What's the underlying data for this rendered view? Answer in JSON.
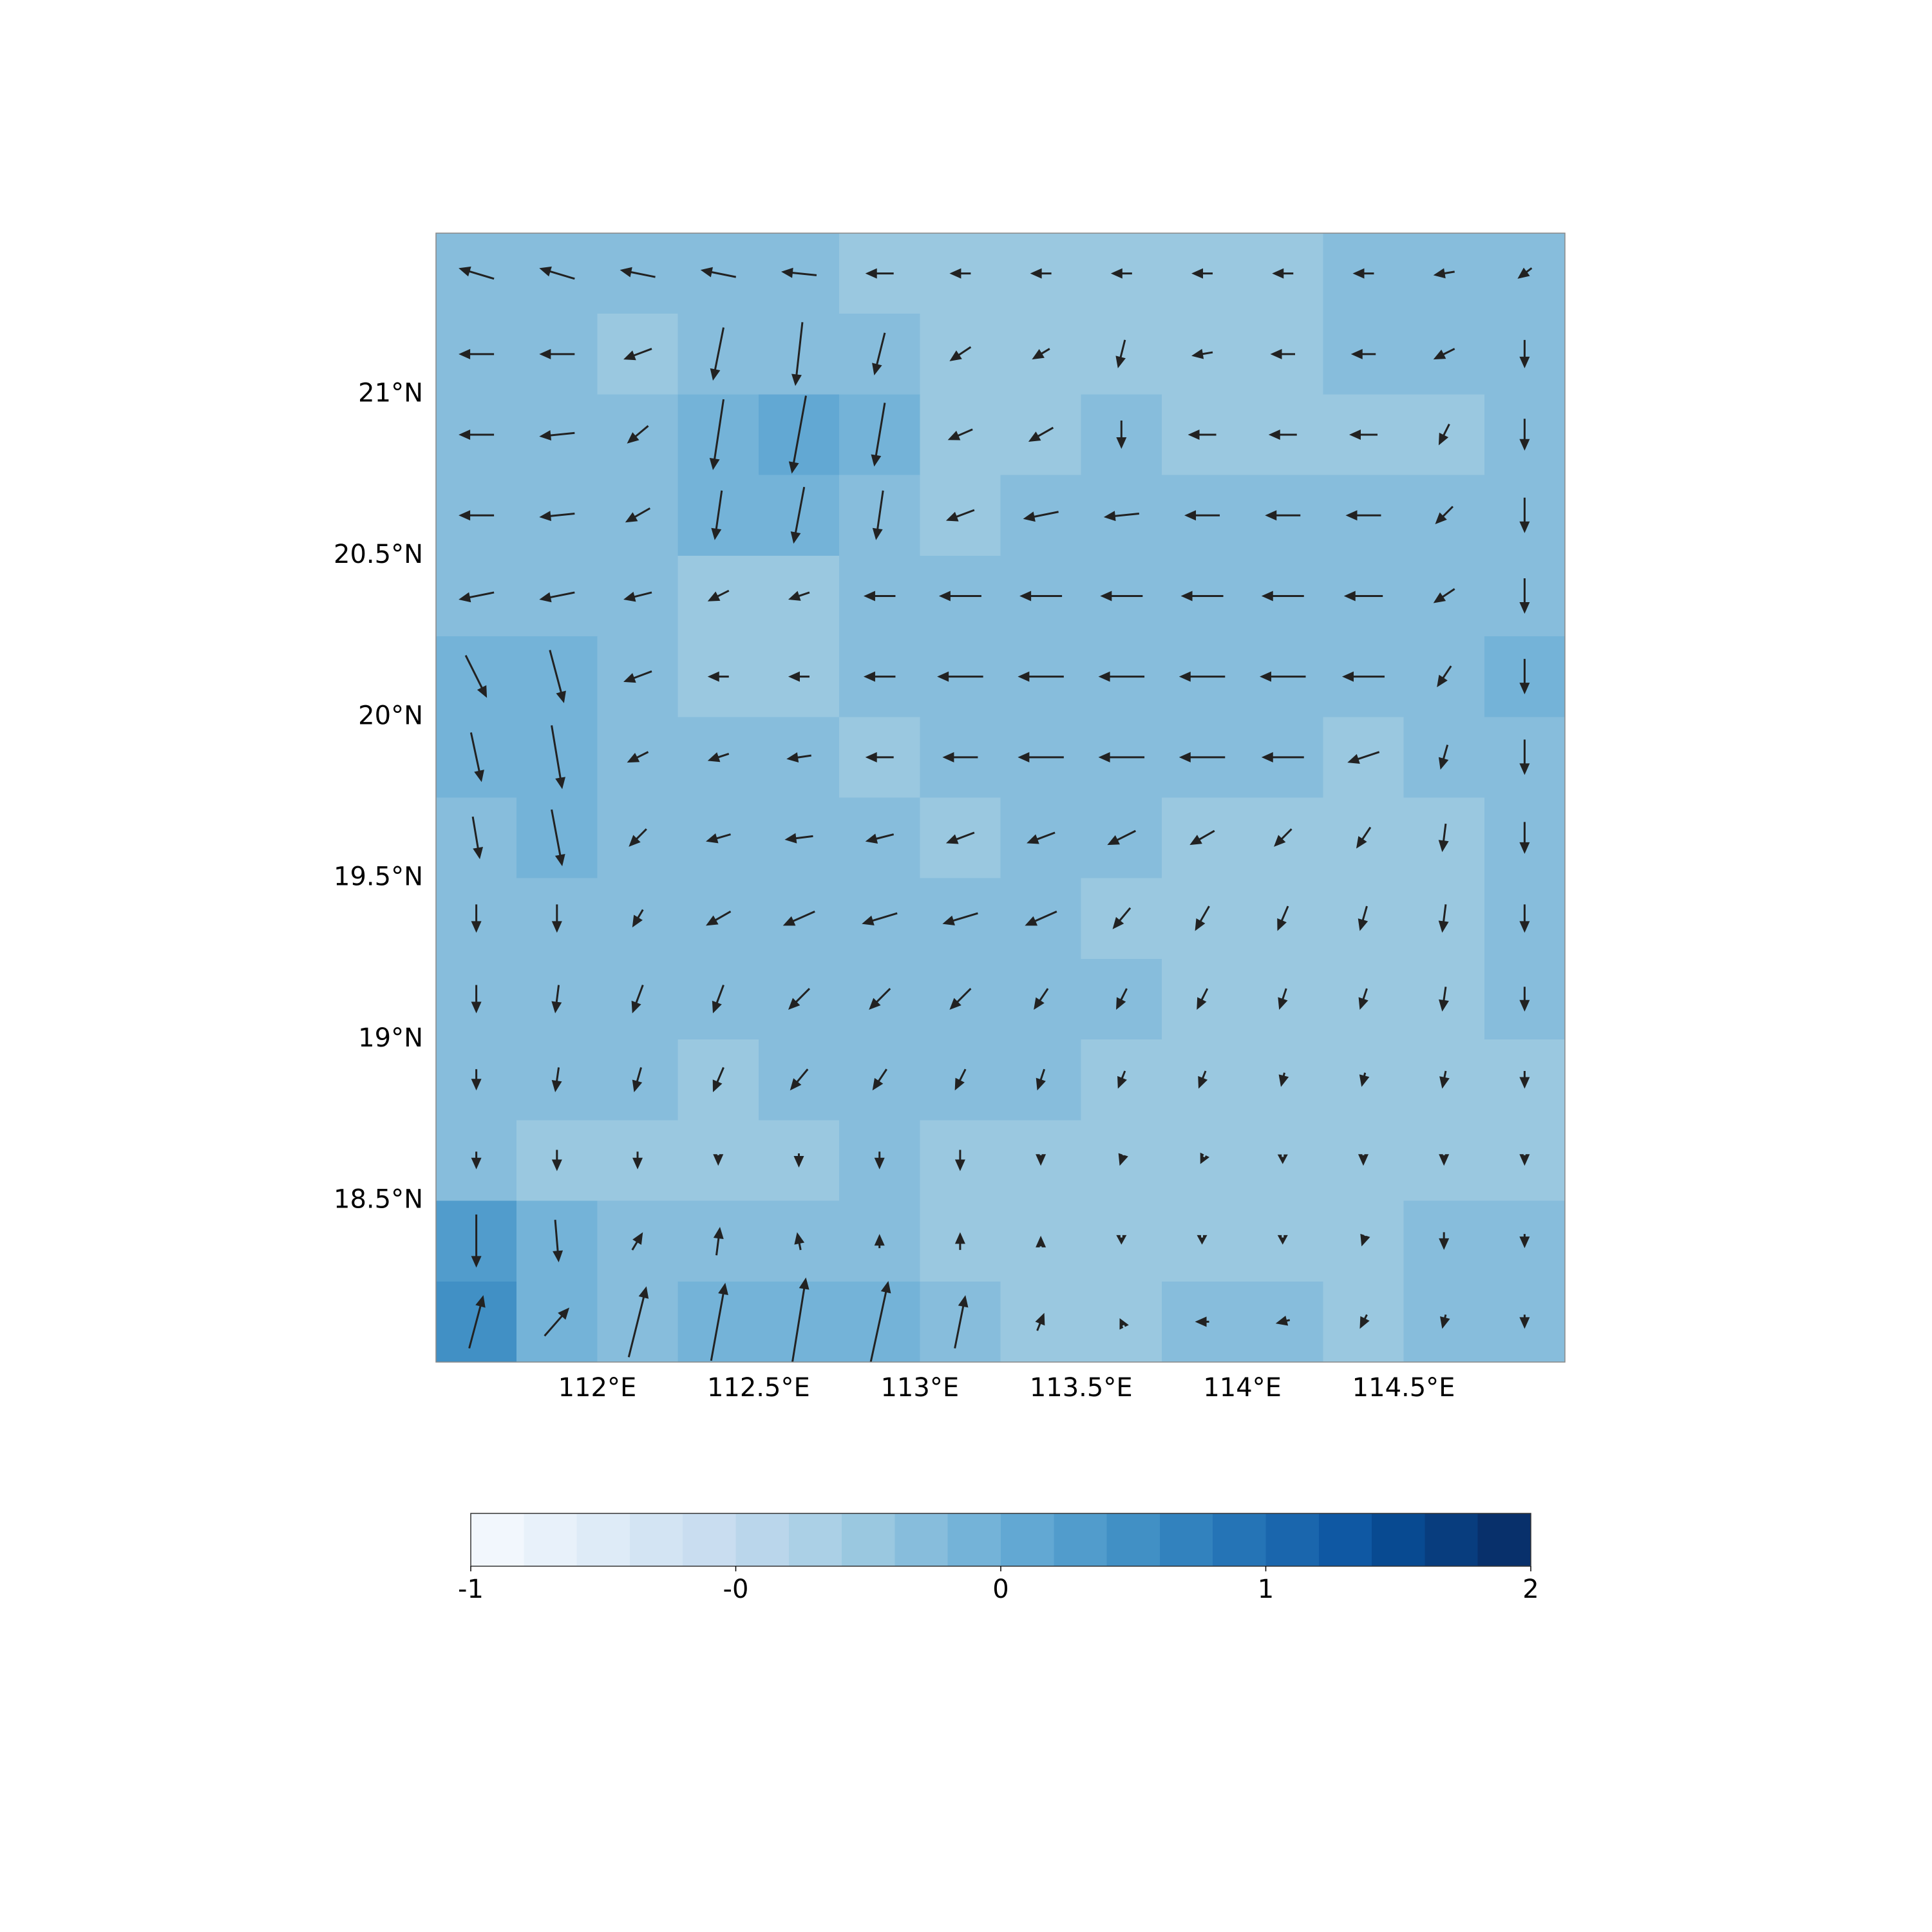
{
  "chart_data": {
    "type": "quiver",
    "xlim": [
      111.5,
      115.0
    ],
    "ylim": [
      18.0,
      21.5
    ],
    "xticks": [
      {
        "value": 112,
        "label": "112°E"
      },
      {
        "value": 112.5,
        "label": "112.5°E"
      },
      {
        "value": 113,
        "label": "113°E"
      },
      {
        "value": 113.5,
        "label": "113.5°E"
      },
      {
        "value": 114,
        "label": "114°E"
      },
      {
        "value": 114.5,
        "label": "114.5°E"
      }
    ],
    "yticks": [
      {
        "value": 18.5,
        "label": "18.5°N"
      },
      {
        "value": 19,
        "label": "19°N"
      },
      {
        "value": 19.5,
        "label": "19.5°N"
      },
      {
        "value": 20,
        "label": "20°N"
      },
      {
        "value": 20.5,
        "label": "20.5°N"
      },
      {
        "value": 21,
        "label": "21°N"
      }
    ],
    "x": [
      111.625,
      111.875,
      112.125,
      112.375,
      112.625,
      112.875,
      113.125,
      113.375,
      113.625,
      113.875,
      114.125,
      114.375,
      114.625,
      114.875
    ],
    "y": [
      21.375,
      21.125,
      20.875,
      20.625,
      20.375,
      20.125,
      19.875,
      19.625,
      19.375,
      19.125,
      18.875,
      18.625,
      18.375,
      18.125
    ],
    "values": [
      [
        0.3,
        0.3,
        0.3,
        0.3,
        0.3,
        0.15,
        0.15,
        0.15,
        0.15,
        0.15,
        0.15,
        0.3,
        0.3,
        0.3
      ],
      [
        0.3,
        0.3,
        0.15,
        0.3,
        0.3,
        0.3,
        0.15,
        0.15,
        0.15,
        0.15,
        0.15,
        0.3,
        0.3,
        0.3
      ],
      [
        0.3,
        0.3,
        0.3,
        0.45,
        0.5,
        0.45,
        0.15,
        0.15,
        0.3,
        0.15,
        0.15,
        0.15,
        0.15,
        0.3
      ],
      [
        0.3,
        0.3,
        0.3,
        0.45,
        0.45,
        0.3,
        0.15,
        0.3,
        0.3,
        0.3,
        0.3,
        0.3,
        0.3,
        0.3
      ],
      [
        0.3,
        0.3,
        0.3,
        0.15,
        0.15,
        0.3,
        0.3,
        0.3,
        0.3,
        0.3,
        0.3,
        0.3,
        0.3,
        0.3
      ],
      [
        0.45,
        0.45,
        0.3,
        0.15,
        0.15,
        0.3,
        0.3,
        0.3,
        0.3,
        0.3,
        0.3,
        0.3,
        0.3,
        0.45
      ],
      [
        0.45,
        0.45,
        0.3,
        0.3,
        0.3,
        0.15,
        0.3,
        0.3,
        0.3,
        0.3,
        0.3,
        0.15,
        0.3,
        0.3
      ],
      [
        0.3,
        0.45,
        0.3,
        0.3,
        0.3,
        0.3,
        0.15,
        0.3,
        0.3,
        0.15,
        0.15,
        0.15,
        0.15,
        0.3
      ],
      [
        0.3,
        0.3,
        0.3,
        0.3,
        0.3,
        0.3,
        0.3,
        0.3,
        0.15,
        0.15,
        0.15,
        0.15,
        0.15,
        0.3
      ],
      [
        0.3,
        0.3,
        0.3,
        0.3,
        0.3,
        0.3,
        0.3,
        0.3,
        0.3,
        0.15,
        0.15,
        0.15,
        0.15,
        0.3
      ],
      [
        0.3,
        0.3,
        0.3,
        0.15,
        0.3,
        0.3,
        0.3,
        0.3,
        0.15,
        0.15,
        0.15,
        0.15,
        0.15,
        0.15
      ],
      [
        0.3,
        0.15,
        0.15,
        0.15,
        0.15,
        0.3,
        0.15,
        0.15,
        0.15,
        0.15,
        0.15,
        0.15,
        0.15,
        0.15
      ],
      [
        0.65,
        0.45,
        0.3,
        0.3,
        0.3,
        0.3,
        0.15,
        0.15,
        0.15,
        0.15,
        0.15,
        0.15,
        0.3,
        0.3
      ],
      [
        0.85,
        0.45,
        0.3,
        0.45,
        0.45,
        0.45,
        0.3,
        0.15,
        0.15,
        0.3,
        0.3,
        0.15,
        0.3,
        0.3
      ]
    ],
    "u": [
      [
        -1,
        -1,
        -1,
        -1,
        -1,
        -0.8,
        -0.6,
        -0.6,
        -0.6,
        -0.6,
        -0.6,
        -0.6,
        -0.6,
        -0.4
      ],
      [
        -1,
        -1,
        -0.8,
        -0.3,
        -0.2,
        -0.3,
        -0.6,
        -0.5,
        -0.2,
        -0.6,
        -0.7,
        -0.7,
        -0.6,
        0
      ],
      [
        -1,
        -1,
        -0.6,
        -0.3,
        -0.4,
        -0.3,
        -0.7,
        -0.7,
        0,
        -0.8,
        -0.8,
        -0.8,
        -0.3,
        0
      ],
      [
        -1,
        -1,
        -0.7,
        -0.2,
        -0.3,
        -0.2,
        -0.8,
        -1,
        -1,
        -1,
        -1,
        -1,
        -0.5,
        0
      ],
      [
        -1,
        -1,
        -0.8,
        -0.6,
        -0.6,
        -0.9,
        -1.2,
        -1.2,
        -1.2,
        -1.2,
        -1.2,
        -1.1,
        -0.6,
        0
      ],
      [
        0.6,
        0.4,
        -0.8,
        -0.6,
        -0.6,
        -0.9,
        -1.3,
        -1.3,
        -1.3,
        -1.3,
        -1.3,
        -1.2,
        -0.4,
        0
      ],
      [
        0.3,
        0.3,
        -0.6,
        -0.6,
        -0.7,
        -0.8,
        -1,
        -1.3,
        -1.3,
        -1.3,
        -1.2,
        -0.9,
        -0.2,
        0
      ],
      [
        0.2,
        0.3,
        -0.5,
        -0.7,
        -0.8,
        -0.8,
        -0.8,
        -0.8,
        -0.8,
        -0.7,
        -0.5,
        -0.4,
        -0.1,
        0
      ],
      [
        0,
        0,
        -0.3,
        -0.7,
        -0.9,
        -1,
        -1,
        -0.9,
        -0.5,
        -0.4,
        -0.3,
        -0.2,
        -0.1,
        0
      ],
      [
        0,
        -0.1,
        -0.3,
        -0.3,
        -0.6,
        -0.6,
        -0.6,
        -0.4,
        -0.3,
        -0.3,
        -0.2,
        -0.2,
        -0.1,
        0
      ],
      [
        0,
        -0.1,
        -0.2,
        -0.3,
        -0.5,
        -0.4,
        -0.3,
        -0.2,
        -0.2,
        -0.2,
        -0.1,
        -0.1,
        -0.1,
        0
      ],
      [
        0,
        0,
        0,
        0,
        0,
        0,
        0,
        0,
        -0.1,
        -0.1,
        0,
        0,
        0,
        0
      ],
      [
        0,
        0.1,
        0.3,
        0.1,
        -0.1,
        0,
        0,
        0,
        0,
        0,
        0,
        -0.1,
        0,
        0
      ],
      [
        0.4,
        0.7,
        0.5,
        0.4,
        0.4,
        0.5,
        0.3,
        0.2,
        -0.1,
        -0.4,
        -0.4,
        -0.2,
        -0.1,
        0
      ]
    ],
    "v": [
      [
        0.3,
        0.3,
        0.2,
        0.2,
        0.1,
        0,
        0,
        0,
        0,
        0,
        0,
        0,
        -0.1,
        -0.3
      ],
      [
        0,
        0,
        -0.3,
        -1.5,
        -1.8,
        -1.2,
        -0.4,
        -0.3,
        -0.8,
        -0.1,
        0,
        0,
        -0.3,
        -0.8
      ],
      [
        0,
        -0.1,
        -0.5,
        -2,
        -2.2,
        -1.8,
        -0.3,
        -0.4,
        -0.8,
        0,
        0,
        0,
        -0.6,
        -0.9
      ],
      [
        0,
        -0.1,
        -0.4,
        -1.4,
        -1.6,
        -1.4,
        -0.3,
        -0.2,
        -0.1,
        0,
        0,
        0,
        -0.5,
        -1
      ],
      [
        -0.2,
        -0.2,
        -0.2,
        -0.3,
        -0.2,
        0,
        0,
        0,
        0,
        0,
        0,
        0,
        -0.4,
        -1
      ],
      [
        -1.2,
        -1.5,
        -0.3,
        0,
        0,
        0,
        0,
        0,
        0,
        0,
        0,
        0,
        -0.6,
        -1
      ],
      [
        -1.4,
        -1.8,
        -0.3,
        -0.2,
        -0.1,
        0,
        0,
        0,
        0,
        0,
        0,
        -0.3,
        -0.7,
        -1
      ],
      [
        -1.2,
        -1.6,
        -0.5,
        -0.2,
        -0.1,
        -0.2,
        -0.3,
        -0.3,
        -0.4,
        -0.4,
        -0.5,
        -0.6,
        -0.8,
        -0.9
      ],
      [
        -0.8,
        -0.8,
        -0.5,
        -0.4,
        -0.4,
        -0.3,
        -0.3,
        -0.4,
        -0.6,
        -0.7,
        -0.7,
        -0.7,
        -0.8,
        -0.8
      ],
      [
        -0.8,
        -0.8,
        -0.8,
        -0.8,
        -0.6,
        -0.6,
        -0.6,
        -0.6,
        -0.6,
        -0.6,
        -0.6,
        -0.6,
        -0.7,
        -0.7
      ],
      [
        -0.6,
        -0.7,
        -0.7,
        -0.7,
        -0.6,
        -0.6,
        -0.6,
        -0.6,
        -0.5,
        -0.5,
        -0.4,
        -0.4,
        -0.5,
        -0.5
      ],
      [
        -0.5,
        -0.6,
        -0.5,
        -0.3,
        -0.4,
        -0.5,
        -0.6,
        -0.3,
        -0.3,
        -0.2,
        -0.2,
        -0.3,
        -0.3,
        -0.3
      ],
      [
        -1.5,
        -1.2,
        0.5,
        0.8,
        0.5,
        0.4,
        0.5,
        0.3,
        -0.2,
        -0.2,
        -0.2,
        -0.3,
        -0.5,
        -0.4
      ],
      [
        1.5,
        0.8,
        2,
        2.2,
        2.5,
        2.3,
        1.5,
        0.5,
        0.2,
        0,
        -0.1,
        -0.4,
        -0.4,
        -0.4
      ]
    ],
    "arrow_color": "#222222",
    "colorbar": {
      "levels": [
        -1,
        -0.85,
        -0.7,
        -0.55,
        -0.4,
        -0.25,
        -0.1,
        0.05,
        0.2,
        0.35,
        0.5,
        0.65,
        0.8,
        0.95,
        1.1,
        1.25,
        1.4,
        1.55,
        1.7,
        1.85,
        2
      ],
      "colors": [
        "#f2f7fd",
        "#e8f1fa",
        "#deebf7",
        "#d3e4f3",
        "#c9ddf0",
        "#bad6eb",
        "#abd0e6",
        "#9ac8e0",
        "#87bddc",
        "#74b3d8",
        "#62a8d3",
        "#519ccc",
        "#4190c5",
        "#3282be",
        "#2574b6",
        "#1a66ad",
        "#0f58a3",
        "#084a91",
        "#083d7e",
        "#08306b"
      ],
      "ticks": [
        {
          "value": -1,
          "label": "-1"
        },
        {
          "value": -0.25,
          "label": "-0"
        },
        {
          "value": 0.5,
          "label": "0"
        },
        {
          "value": 1.25,
          "label": "1"
        },
        {
          "value": 2,
          "label": "2"
        }
      ]
    }
  }
}
